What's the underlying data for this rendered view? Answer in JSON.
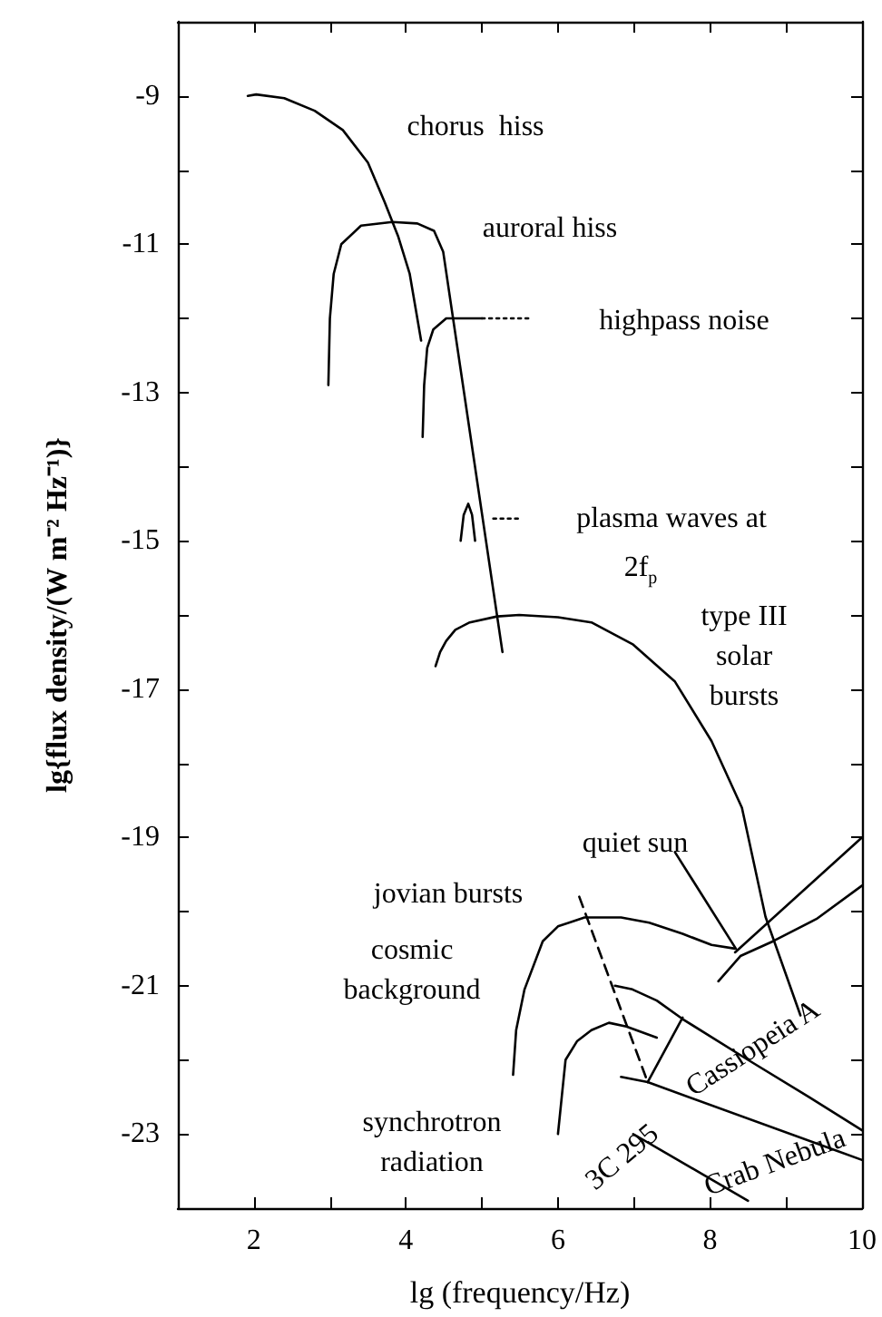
{
  "chart_data": {
    "type": "line",
    "xlabel": "lg (frequency/Hz)",
    "ylabel": "lg{flux density/(W m⁻² Hz⁻¹)}",
    "xlim": [
      1,
      10
    ],
    "xticks": [
      {
        "value": 1,
        "label": null
      },
      2,
      {
        "value": 3,
        "label": null
      },
      4,
      {
        "value": 5,
        "label": null
      },
      6,
      {
        "value": 7,
        "label": null
      },
      8,
      {
        "value": 9,
        "label": null
      },
      10
    ],
    "ylim": [
      -24,
      -8
    ],
    "yticks": [
      {
        "value": -24,
        "label": null
      },
      -23,
      {
        "value": -22,
        "label": null
      },
      -21,
      {
        "value": -20,
        "label": null
      },
      -19,
      {
        "value": -18,
        "label": null
      },
      -17,
      {
        "value": -16,
        "label": null
      },
      -15,
      {
        "value": -14,
        "label": null
      },
      -13,
      {
        "value": -12,
        "label": null
      },
      -11,
      {
        "value": -10,
        "label": null
      },
      -9,
      {
        "value": -8,
        "label": null
      }
    ],
    "marker": "none",
    "line_style": "solid",
    "series": [
      {
        "color": "#000000",
        "x": [
          1.92,
          2.03,
          2.4,
          2.8,
          3.17,
          3.5,
          3.72,
          3.9,
          4.05,
          4.2
        ],
        "values": [
          -9,
          -8.98,
          -9.03,
          -9.2,
          -9.46,
          -9.9,
          -10.43,
          -10.9,
          -11.4,
          -12.3
        ]
      },
      {
        "color": "#000000",
        "x": [
          2.98,
          3.0,
          3.05,
          3.15,
          3.41,
          3.82,
          4.15,
          4.37,
          4.49,
          5.27
        ],
        "values": [
          -12.9,
          -12.0,
          -11.4,
          -11.0,
          -10.75,
          -10.7,
          -10.72,
          -10.82,
          -11.1,
          -16.5
        ]
      },
      {
        "color": "#000000",
        "x": [
          4.22,
          4.24,
          4.28,
          4.36,
          4.53,
          5.0
        ],
        "values": [
          -13.6,
          -12.9,
          -12.4,
          -12.15,
          -12.0,
          -12.0
        ]
      },
      {
        "color": "#000000",
        "line_style": "dotted",
        "x": [
          5.0,
          5.65
        ],
        "values": [
          -12.0,
          -12.0
        ]
      },
      {
        "color": "#000000",
        "x": [
          4.72,
          4.76,
          4.82,
          4.87,
          4.91
        ],
        "values": [
          -15.0,
          -14.65,
          -14.5,
          -14.65,
          -15.0
        ]
      },
      {
        "color": "#000000",
        "line_style": "dotted",
        "x": [
          5.15,
          5.5
        ],
        "values": [
          -14.7,
          -14.7
        ]
      },
      {
        "color": "#000000",
        "x": [
          4.39,
          4.45,
          4.53,
          4.65,
          4.84,
          5.2,
          5.49,
          6.0,
          6.44,
          6.99,
          7.54,
          8.02,
          8.42,
          8.73,
          9.19
        ],
        "values": [
          -16.69,
          -16.5,
          -16.35,
          -16.2,
          -16.1,
          -16.02,
          -16.0,
          -16.03,
          -16.1,
          -16.4,
          -16.9,
          -17.7,
          -18.6,
          -20.07,
          -21.4
        ]
      },
      {
        "color": "#000000",
        "x": [
          5.41,
          5.45,
          5.56,
          5.8,
          6.0,
          6.35,
          6.83,
          7.2,
          7.64,
          8.02,
          8.33
        ],
        "values": [
          -22.2,
          -21.6,
          -21.05,
          -20.4,
          -20.2,
          -20.08,
          -20.08,
          -20.15,
          -20.3,
          -20.45,
          -20.5
        ]
      },
      {
        "color": "#000000",
        "x": [
          8.33,
          10
        ],
        "values": [
          -20.55,
          -19.0
        ]
      },
      {
        "color": "#000000",
        "x": [
          8.11,
          8.4,
          8.83,
          9.4,
          10
        ],
        "values": [
          -20.94,
          -20.6,
          -20.4,
          -20.1,
          -19.65
        ]
      },
      {
        "color": "#000000",
        "x": [
          7.54,
          8.34
        ],
        "values": [
          -19.2,
          -20.5
        ]
      },
      {
        "color": "#000000",
        "line_style": "dashed",
        "x": [
          6.28,
          7.18
        ],
        "values": [
          -19.8,
          -22.3
        ]
      },
      {
        "color": "#000000",
        "x": [
          6.75,
          6.98,
          7.3,
          7.64,
          8.5,
          9.3,
          10
        ],
        "values": [
          -21.0,
          -21.05,
          -21.2,
          -21.45,
          -22.0,
          -22.5,
          -22.95
        ]
      },
      {
        "color": "#000000",
        "x": [
          7.64,
          7.18
        ],
        "values": [
          -21.43,
          -22.3
        ]
      },
      {
        "color": "#000000",
        "x": [
          6.0,
          6.05,
          6.1,
          6.25,
          6.44,
          6.67,
          6.9,
          7.3
        ],
        "values": [
          -23.0,
          -22.5,
          -22.0,
          -21.75,
          -21.6,
          -21.5,
          -21.55,
          -21.7
        ]
      },
      {
        "color": "#000000",
        "x": [
          6.83,
          7.18,
          10
        ],
        "values": [
          -22.23,
          -22.3,
          -23.35
        ]
      },
      {
        "color": "#000000",
        "x": [
          6.99,
          8.5
        ],
        "values": [
          -23.0,
          -23.9
        ]
      }
    ],
    "annotations": [
      "chorus  hiss",
      "auroral hiss",
      "highpass noise",
      "plasma waves at",
      "2f$_{p}$",
      "type III\nsolar\nbursts",
      "quiet sun",
      "jovian bursts",
      "cosmic\nbackground",
      "Cassiopeia A",
      "Crab Nebula",
      "3C 295",
      "synchrotron\nradiation"
    ]
  }
}
